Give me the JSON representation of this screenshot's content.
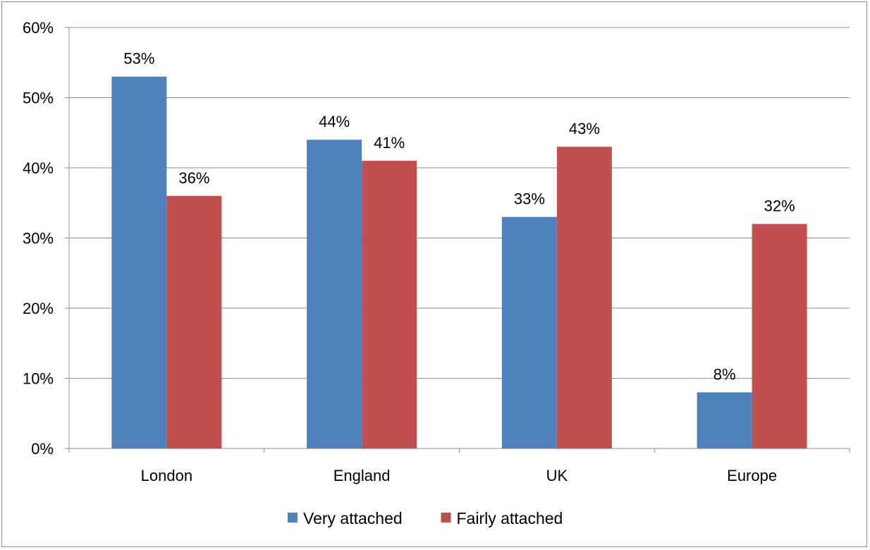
{
  "chart_data": {
    "type": "bar",
    "categories": [
      "London",
      "England",
      "UK",
      "Europe"
    ],
    "series": [
      {
        "name": "Very attached",
        "values": [
          53,
          44,
          33,
          8
        ],
        "color": "#4f81bd",
        "labels": [
          "53%",
          "44%",
          "33%",
          "8%"
        ]
      },
      {
        "name": "Fairly attached",
        "values": [
          36,
          41,
          43,
          32
        ],
        "color": "#c0504d",
        "labels": [
          "36%",
          "41%",
          "43%",
          "32%"
        ]
      }
    ],
    "yticks": [
      "0%",
      "10%",
      "20%",
      "30%",
      "40%",
      "50%",
      "60%"
    ],
    "ylim": [
      0,
      60
    ],
    "grid": true,
    "legend_position": "bottom",
    "title": "",
    "xlabel": "",
    "ylabel": ""
  }
}
